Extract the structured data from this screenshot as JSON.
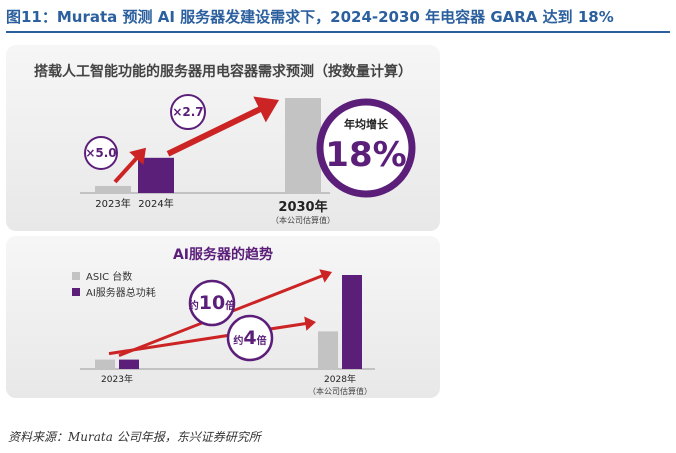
{
  "figure_title": "图11：Murata 预测 AI 服务器发建设需求下，2024-2030 年电容器 GARA 达到 18%",
  "source": "资料来源：Murata 公司年报，东兴证券研究所",
  "colors": {
    "title_blue": "#2b5f9e",
    "purple": "#5b1f7a",
    "gray": "#c3c3c3",
    "arrow_red": "#cc2424",
    "panel_bg": "#efefef"
  },
  "chart_data": [
    {
      "type": "bar",
      "title": "搭载人工智能功能的服务器用电容器需求预测（按数量计算）",
      "categories": [
        "2023年",
        "2024年",
        "2030年"
      ],
      "category_notes": [
        "",
        "",
        "（本公司估算值）"
      ],
      "values": [
        1,
        5,
        13.5
      ],
      "annotations": [
        {
          "label": "×5.0",
          "from": "2023年",
          "to": "2024年"
        },
        {
          "label": "×2.7",
          "from": "2024年",
          "to": "2030年"
        }
      ],
      "cagr_badge": {
        "label": "年均增长",
        "value": "18%"
      },
      "xlabel": "",
      "ylabel": "",
      "grid": false
    },
    {
      "type": "bar",
      "title": "AI服务器的趋势",
      "categories": [
        "2023年",
        "2028年"
      ],
      "category_notes": [
        "",
        "（本公司估算值）"
      ],
      "series": [
        {
          "name": "ASIC 台数",
          "values": [
            1,
            4
          ]
        },
        {
          "name": "AI服务器总功耗",
          "values": [
            1,
            10
          ]
        }
      ],
      "annotations": [
        {
          "label": "约10倍",
          "series": "AI服务器总功耗"
        },
        {
          "label": "约4倍",
          "series": "ASIC 台数"
        }
      ],
      "legend": "top-left",
      "xlabel": "",
      "ylabel": "",
      "grid": false
    }
  ]
}
